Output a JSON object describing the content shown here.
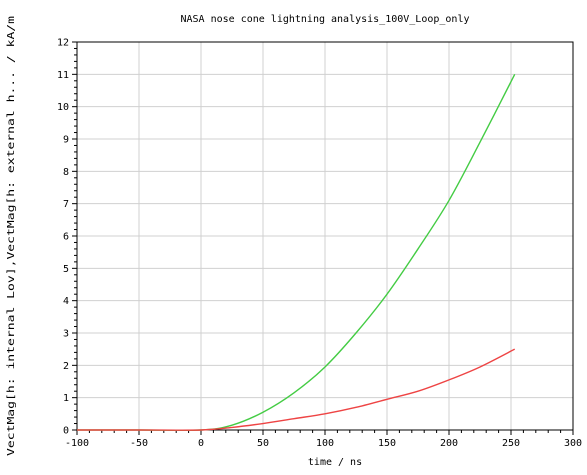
{
  "chart_data": {
    "type": "line",
    "title": "NASA nose cone lightning analysis_100V_Loop_only",
    "xlabel": "time / ns",
    "ylabel": "VectMag[h: internal Lov],VectMag[h: external h... / kA/m",
    "xlim": [
      -100,
      300
    ],
    "ylim": [
      0,
      12
    ],
    "x_ticks": [
      -100,
      -50,
      0,
      50,
      100,
      150,
      200,
      250,
      300
    ],
    "y_ticks": [
      0,
      1,
      2,
      3,
      4,
      5,
      6,
      7,
      8,
      9,
      10,
      11,
      12
    ],
    "grid": true,
    "series": [
      {
        "color": "#44cc44",
        "x": [
          -100,
          -50,
          0,
          25,
          50,
          75,
          100,
          125,
          150,
          175,
          200,
          225,
          253
        ],
        "y": [
          0,
          0,
          0,
          0.15,
          0.55,
          1.15,
          1.95,
          3.0,
          4.2,
          5.6,
          7.1,
          8.9,
          11.0
        ]
      },
      {
        "color": "#ee4444",
        "x": [
          -100,
          -50,
          0,
          25,
          50,
          75,
          100,
          125,
          150,
          175,
          200,
          225,
          253
        ],
        "y": [
          0,
          0,
          0,
          0.08,
          0.2,
          0.35,
          0.5,
          0.7,
          0.95,
          1.2,
          1.55,
          1.95,
          2.5
        ]
      }
    ]
  }
}
